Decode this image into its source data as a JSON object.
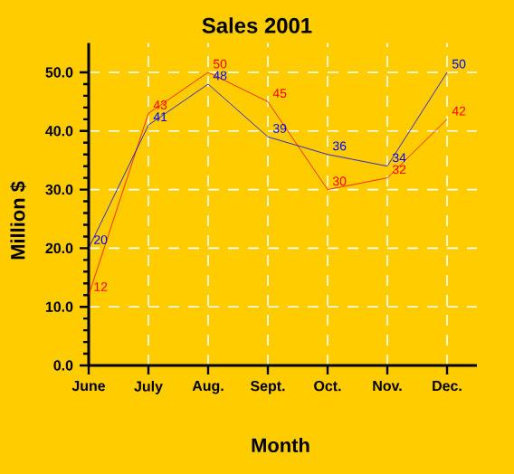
{
  "chart_data": {
    "type": "line",
    "title": "Sales 2001",
    "xlabel": "Month",
    "ylabel": "Million $",
    "categories": [
      "June",
      "July",
      "Aug.",
      "Sept.",
      "Oct.",
      "Nov.",
      "Dec."
    ],
    "series": [
      {
        "color": "#ff0000",
        "values": [
          12,
          43,
          50,
          45,
          30,
          32,
          42
        ]
      },
      {
        "color": "#0000ff",
        "values": [
          20,
          41,
          48,
          39,
          36,
          34,
          50
        ]
      }
    ],
    "ylim": [
      0,
      55
    ],
    "yticks": [
      {
        "value": 0,
        "label": "0.0"
      },
      {
        "value": 10,
        "label": "10.0"
      },
      {
        "value": 20,
        "label": "20.0"
      },
      {
        "value": 30,
        "label": "30.0"
      },
      {
        "value": 40,
        "label": "40.0"
      },
      {
        "value": 50,
        "label": "50.0"
      }
    ],
    "grid": true,
    "data_labels": true,
    "marker": "none",
    "line_style": "solid"
  }
}
